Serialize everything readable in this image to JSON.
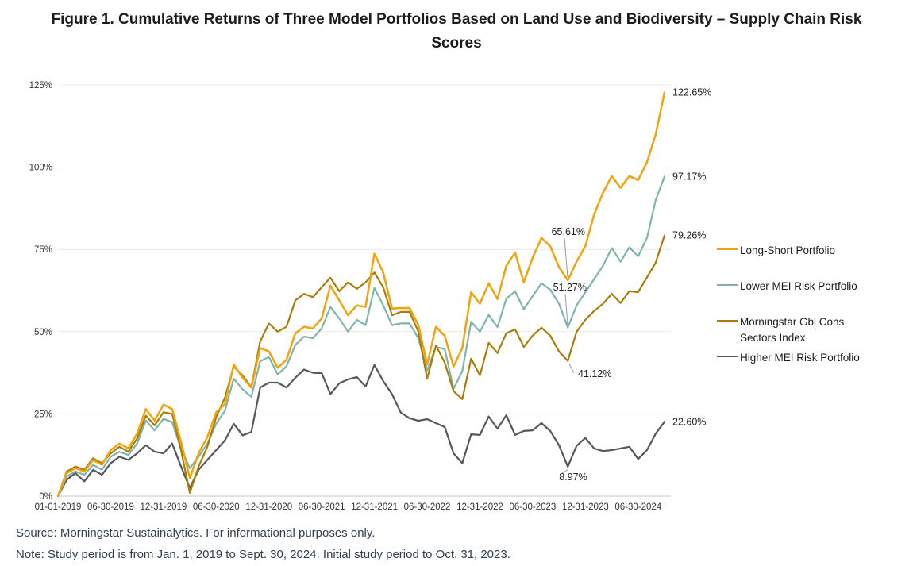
{
  "title": "Figure 1. Cumulative Returns of Three Model Portfolios Based on Land Use and Biodiversity – Supply Chain Risk Scores",
  "source_line": "Source: Morningstar Sustainalytics. For informational purposes only.",
  "note_line": "Note: Study period is from Jan. 1, 2019 to Sept. 30, 2024. Initial study period to Oct. 31, 2023.",
  "colors": {
    "long_short": "#F0A30D",
    "lower_mei": "#7EB4AC",
    "morningstar_index": "#A87D08",
    "higher_mei": "#55585A",
    "gridline": "#e8e8e8",
    "axis_line": "#c6c6c6",
    "tick_text": "#333333",
    "annotation_text": "#222222",
    "leader_line": "#9a9a9a"
  },
  "chart_data": {
    "type": "line",
    "title": "Cumulative Returns of Three Model Portfolios Based on Land Use and Biodiversity – Supply Chain Risk Scores",
    "x_unit": "monthly observations, months elapsed since 2019-01-01 (0) through 2024-09-30 (69)",
    "x_tick_labels": [
      "01-01-2019",
      "06-30-2019",
      "12-31-2019",
      "06-30-2020",
      "12-31-2020",
      "06-30-2021",
      "12-31-2021",
      "06-30-2022",
      "12-31-2022",
      "06-30-2023",
      "12-31-2023",
      "06-30-2024"
    ],
    "x_tick_months": [
      0,
      6,
      12,
      18,
      24,
      30,
      36,
      42,
      48,
      54,
      60,
      66
    ],
    "y_tick_labels": [
      "0%",
      "25%",
      "50%",
      "75%",
      "100%",
      "125%"
    ],
    "ylim": [
      0,
      125
    ],
    "grid": "horizontal",
    "legend_position": "right",
    "annotation_note": "values annotated at Oct. 31, 2023 (end of initial study period) and at final point Sept. 30, 2024",
    "series": [
      {
        "name": "Long-Short Portfolio",
        "color": "#F0A30D",
        "end_label": "122.65%",
        "annotation": {
          "text": "65.61%",
          "month": 58,
          "value": 65.61
        },
        "values": [
          0,
          7,
          8.5,
          7.5,
          11,
          9.5,
          14,
          16,
          14.5,
          19,
          26.5,
          23,
          27.8,
          26.5,
          16.5,
          5.5,
          13,
          18,
          25.5,
          28,
          40,
          36,
          33,
          45,
          44,
          39,
          41.5,
          49.5,
          51.5,
          51,
          54,
          64,
          59.5,
          55,
          58,
          57.5,
          73.7,
          68,
          57,
          57.2,
          57.2,
          52,
          40,
          51.5,
          48.7,
          39.4,
          45,
          62,
          58.5,
          64.7,
          59.9,
          70,
          74,
          65,
          72.5,
          78.5,
          76,
          69.6,
          65.61,
          71.3,
          76,
          85.7,
          92.2,
          97.3,
          93.7,
          97.3,
          96.1,
          101.5,
          110,
          122.65
        ]
      },
      {
        "name": "Lower MEI Risk Portfolio",
        "color": "#7EB4AC",
        "end_label": "97.17%",
        "annotation": {
          "text": "51.27%",
          "month": 58,
          "value": 51.27
        },
        "values": [
          0,
          6,
          7.5,
          6.5,
          9.5,
          8,
          12,
          13.5,
          12.5,
          16,
          23,
          20,
          23.5,
          22.5,
          14.5,
          8.5,
          12,
          16,
          22,
          26,
          35.7,
          32.5,
          30.2,
          41,
          42.3,
          37,
          39.5,
          46,
          48.5,
          48,
          51,
          57.5,
          54,
          50,
          53.6,
          52,
          63.3,
          58,
          52,
          52.5,
          52.5,
          48,
          38.2,
          45.4,
          44.7,
          32.6,
          38,
          53,
          50,
          55.1,
          51.4,
          60,
          62.3,
          56.8,
          60.8,
          64.7,
          62.8,
          58.5,
          51.27,
          58,
          62,
          66,
          70,
          75.4,
          71.3,
          75.6,
          72.9,
          78.5,
          90,
          97.17
        ]
      },
      {
        "name": "Morningstar Gbl Cons Sectors Index",
        "color": "#A87D08",
        "end_label": "79.26%",
        "annotation": {
          "text": "41.12%",
          "month": 58,
          "value": 41.12
        },
        "values": [
          0,
          7.5,
          9,
          8,
          11.5,
          10,
          13,
          15,
          13.5,
          17.5,
          24.5,
          21.5,
          25.5,
          25,
          14,
          1,
          9,
          15,
          24,
          30,
          39.4,
          36.7,
          33.1,
          47,
          52.5,
          50,
          51.5,
          59.5,
          61.5,
          60.5,
          63.5,
          66.4,
          62.3,
          65,
          63,
          65,
          68,
          63.5,
          55,
          56,
          56,
          50,
          35.7,
          45.8,
          40.6,
          31.9,
          29.5,
          41.8,
          36.7,
          46.6,
          43.5,
          49.5,
          50.7,
          45.4,
          48.8,
          51.2,
          48.8,
          44,
          41.12,
          50,
          53.6,
          56.3,
          58.5,
          61.5,
          58.7,
          62.3,
          62,
          66.5,
          71,
          79.26
        ]
      },
      {
        "name": "Higher MEI Risk Portfolio",
        "color": "#55585A",
        "end_label": "22.60%",
        "annotation": {
          "text": "8.97%",
          "month": 58,
          "value": 8.97
        },
        "values": [
          0,
          5,
          7,
          4.5,
          8,
          6.5,
          10,
          12,
          11,
          13,
          15.5,
          13.5,
          13,
          16,
          9,
          2.5,
          8,
          11,
          14,
          17,
          22,
          18.5,
          19.5,
          33,
          34.5,
          34.5,
          33,
          36,
          38.5,
          37.5,
          37.4,
          31,
          34.3,
          35.5,
          36.2,
          33.3,
          39.9,
          35,
          31,
          25.4,
          23.7,
          22.9,
          23.4,
          22.2,
          21,
          13,
          10,
          18.8,
          18.6,
          24.2,
          20.5,
          24.6,
          18.6,
          19.8,
          20,
          22.2,
          19.8,
          15.5,
          8.97,
          15.3,
          17.7,
          14.5,
          13.7,
          14,
          14.5,
          15,
          11.3,
          14,
          19,
          22.6
        ]
      }
    ]
  }
}
